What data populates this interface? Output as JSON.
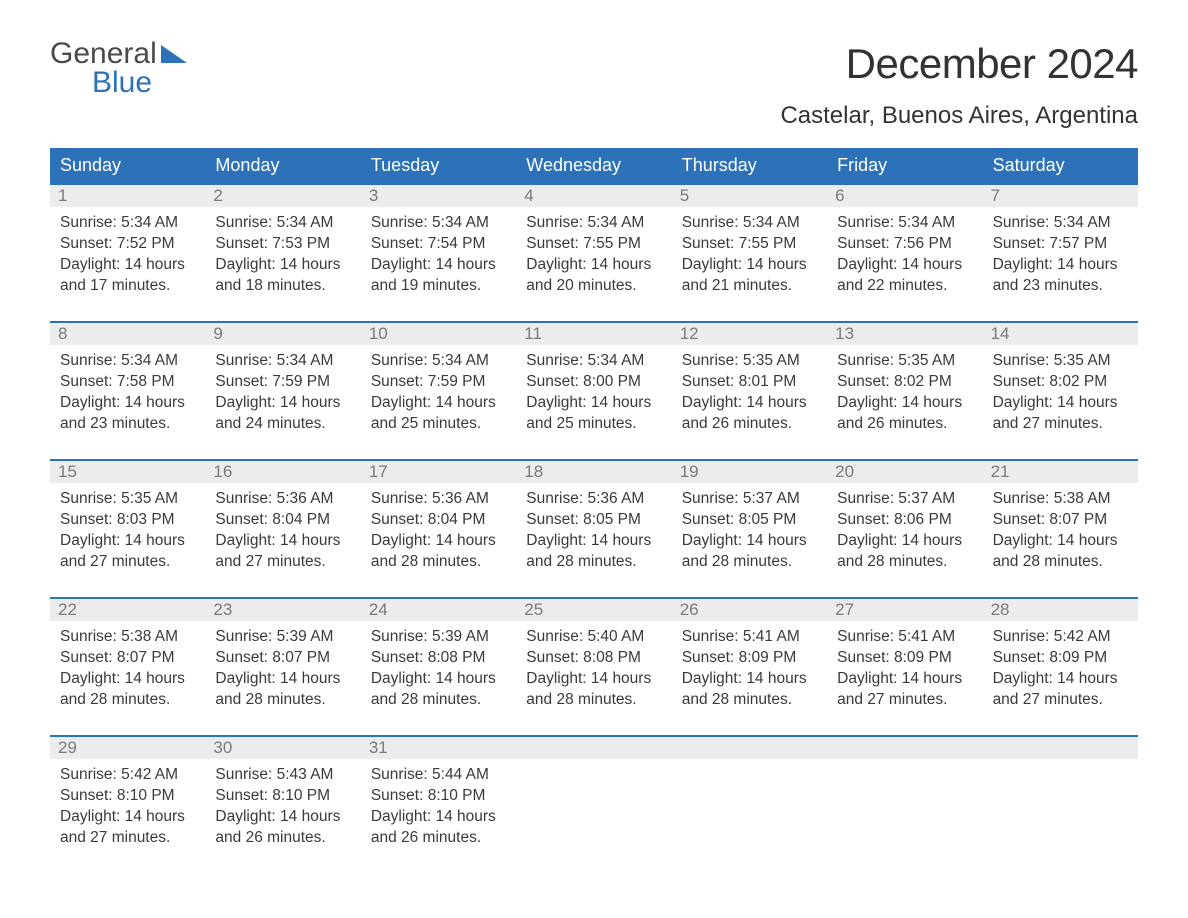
{
  "brand": {
    "top": "General",
    "bottom": "Blue"
  },
  "title": "December 2024",
  "subtitle": "Castelar, Buenos Aires, Argentina",
  "colors": {
    "header_bg": "#2d72b8",
    "header_text": "#ffffff",
    "daynum_bg": "#ececec",
    "daynum_text": "#7a7a7a",
    "body_text": "#3a3a3a",
    "page_bg": "#ffffff",
    "week_border": "#2d72b8"
  },
  "weekdays": [
    "Sunday",
    "Monday",
    "Tuesday",
    "Wednesday",
    "Thursday",
    "Friday",
    "Saturday"
  ],
  "weeks": [
    [
      {
        "n": "1",
        "sunrise": "5:34 AM",
        "sunset": "7:52 PM",
        "dh": "14",
        "dm": "17"
      },
      {
        "n": "2",
        "sunrise": "5:34 AM",
        "sunset": "7:53 PM",
        "dh": "14",
        "dm": "18"
      },
      {
        "n": "3",
        "sunrise": "5:34 AM",
        "sunset": "7:54 PM",
        "dh": "14",
        "dm": "19"
      },
      {
        "n": "4",
        "sunrise": "5:34 AM",
        "sunset": "7:55 PM",
        "dh": "14",
        "dm": "20"
      },
      {
        "n": "5",
        "sunrise": "5:34 AM",
        "sunset": "7:55 PM",
        "dh": "14",
        "dm": "21"
      },
      {
        "n": "6",
        "sunrise": "5:34 AM",
        "sunset": "7:56 PM",
        "dh": "14",
        "dm": "22"
      },
      {
        "n": "7",
        "sunrise": "5:34 AM",
        "sunset": "7:57 PM",
        "dh": "14",
        "dm": "23"
      }
    ],
    [
      {
        "n": "8",
        "sunrise": "5:34 AM",
        "sunset": "7:58 PM",
        "dh": "14",
        "dm": "23"
      },
      {
        "n": "9",
        "sunrise": "5:34 AM",
        "sunset": "7:59 PM",
        "dh": "14",
        "dm": "24"
      },
      {
        "n": "10",
        "sunrise": "5:34 AM",
        "sunset": "7:59 PM",
        "dh": "14",
        "dm": "25"
      },
      {
        "n": "11",
        "sunrise": "5:34 AM",
        "sunset": "8:00 PM",
        "dh": "14",
        "dm": "25"
      },
      {
        "n": "12",
        "sunrise": "5:35 AM",
        "sunset": "8:01 PM",
        "dh": "14",
        "dm": "26"
      },
      {
        "n": "13",
        "sunrise": "5:35 AM",
        "sunset": "8:02 PM",
        "dh": "14",
        "dm": "26"
      },
      {
        "n": "14",
        "sunrise": "5:35 AM",
        "sunset": "8:02 PM",
        "dh": "14",
        "dm": "27"
      }
    ],
    [
      {
        "n": "15",
        "sunrise": "5:35 AM",
        "sunset": "8:03 PM",
        "dh": "14",
        "dm": "27"
      },
      {
        "n": "16",
        "sunrise": "5:36 AM",
        "sunset": "8:04 PM",
        "dh": "14",
        "dm": "27"
      },
      {
        "n": "17",
        "sunrise": "5:36 AM",
        "sunset": "8:04 PM",
        "dh": "14",
        "dm": "28"
      },
      {
        "n": "18",
        "sunrise": "5:36 AM",
        "sunset": "8:05 PM",
        "dh": "14",
        "dm": "28"
      },
      {
        "n": "19",
        "sunrise": "5:37 AM",
        "sunset": "8:05 PM",
        "dh": "14",
        "dm": "28"
      },
      {
        "n": "20",
        "sunrise": "5:37 AM",
        "sunset": "8:06 PM",
        "dh": "14",
        "dm": "28"
      },
      {
        "n": "21",
        "sunrise": "5:38 AM",
        "sunset": "8:07 PM",
        "dh": "14",
        "dm": "28"
      }
    ],
    [
      {
        "n": "22",
        "sunrise": "5:38 AM",
        "sunset": "8:07 PM",
        "dh": "14",
        "dm": "28"
      },
      {
        "n": "23",
        "sunrise": "5:39 AM",
        "sunset": "8:07 PM",
        "dh": "14",
        "dm": "28"
      },
      {
        "n": "24",
        "sunrise": "5:39 AM",
        "sunset": "8:08 PM",
        "dh": "14",
        "dm": "28"
      },
      {
        "n": "25",
        "sunrise": "5:40 AM",
        "sunset": "8:08 PM",
        "dh": "14",
        "dm": "28"
      },
      {
        "n": "26",
        "sunrise": "5:41 AM",
        "sunset": "8:09 PM",
        "dh": "14",
        "dm": "28"
      },
      {
        "n": "27",
        "sunrise": "5:41 AM",
        "sunset": "8:09 PM",
        "dh": "14",
        "dm": "27"
      },
      {
        "n": "28",
        "sunrise": "5:42 AM",
        "sunset": "8:09 PM",
        "dh": "14",
        "dm": "27"
      }
    ],
    [
      {
        "n": "29",
        "sunrise": "5:42 AM",
        "sunset": "8:10 PM",
        "dh": "14",
        "dm": "27"
      },
      {
        "n": "30",
        "sunrise": "5:43 AM",
        "sunset": "8:10 PM",
        "dh": "14",
        "dm": "26"
      },
      {
        "n": "31",
        "sunrise": "5:44 AM",
        "sunset": "8:10 PM",
        "dh": "14",
        "dm": "26"
      },
      null,
      null,
      null,
      null
    ]
  ],
  "labels": {
    "sunrise": "Sunrise: ",
    "sunset": "Sunset: ",
    "daylight_pre": "Daylight: ",
    "daylight_mid": " hours and ",
    "daylight_post": " minutes."
  }
}
